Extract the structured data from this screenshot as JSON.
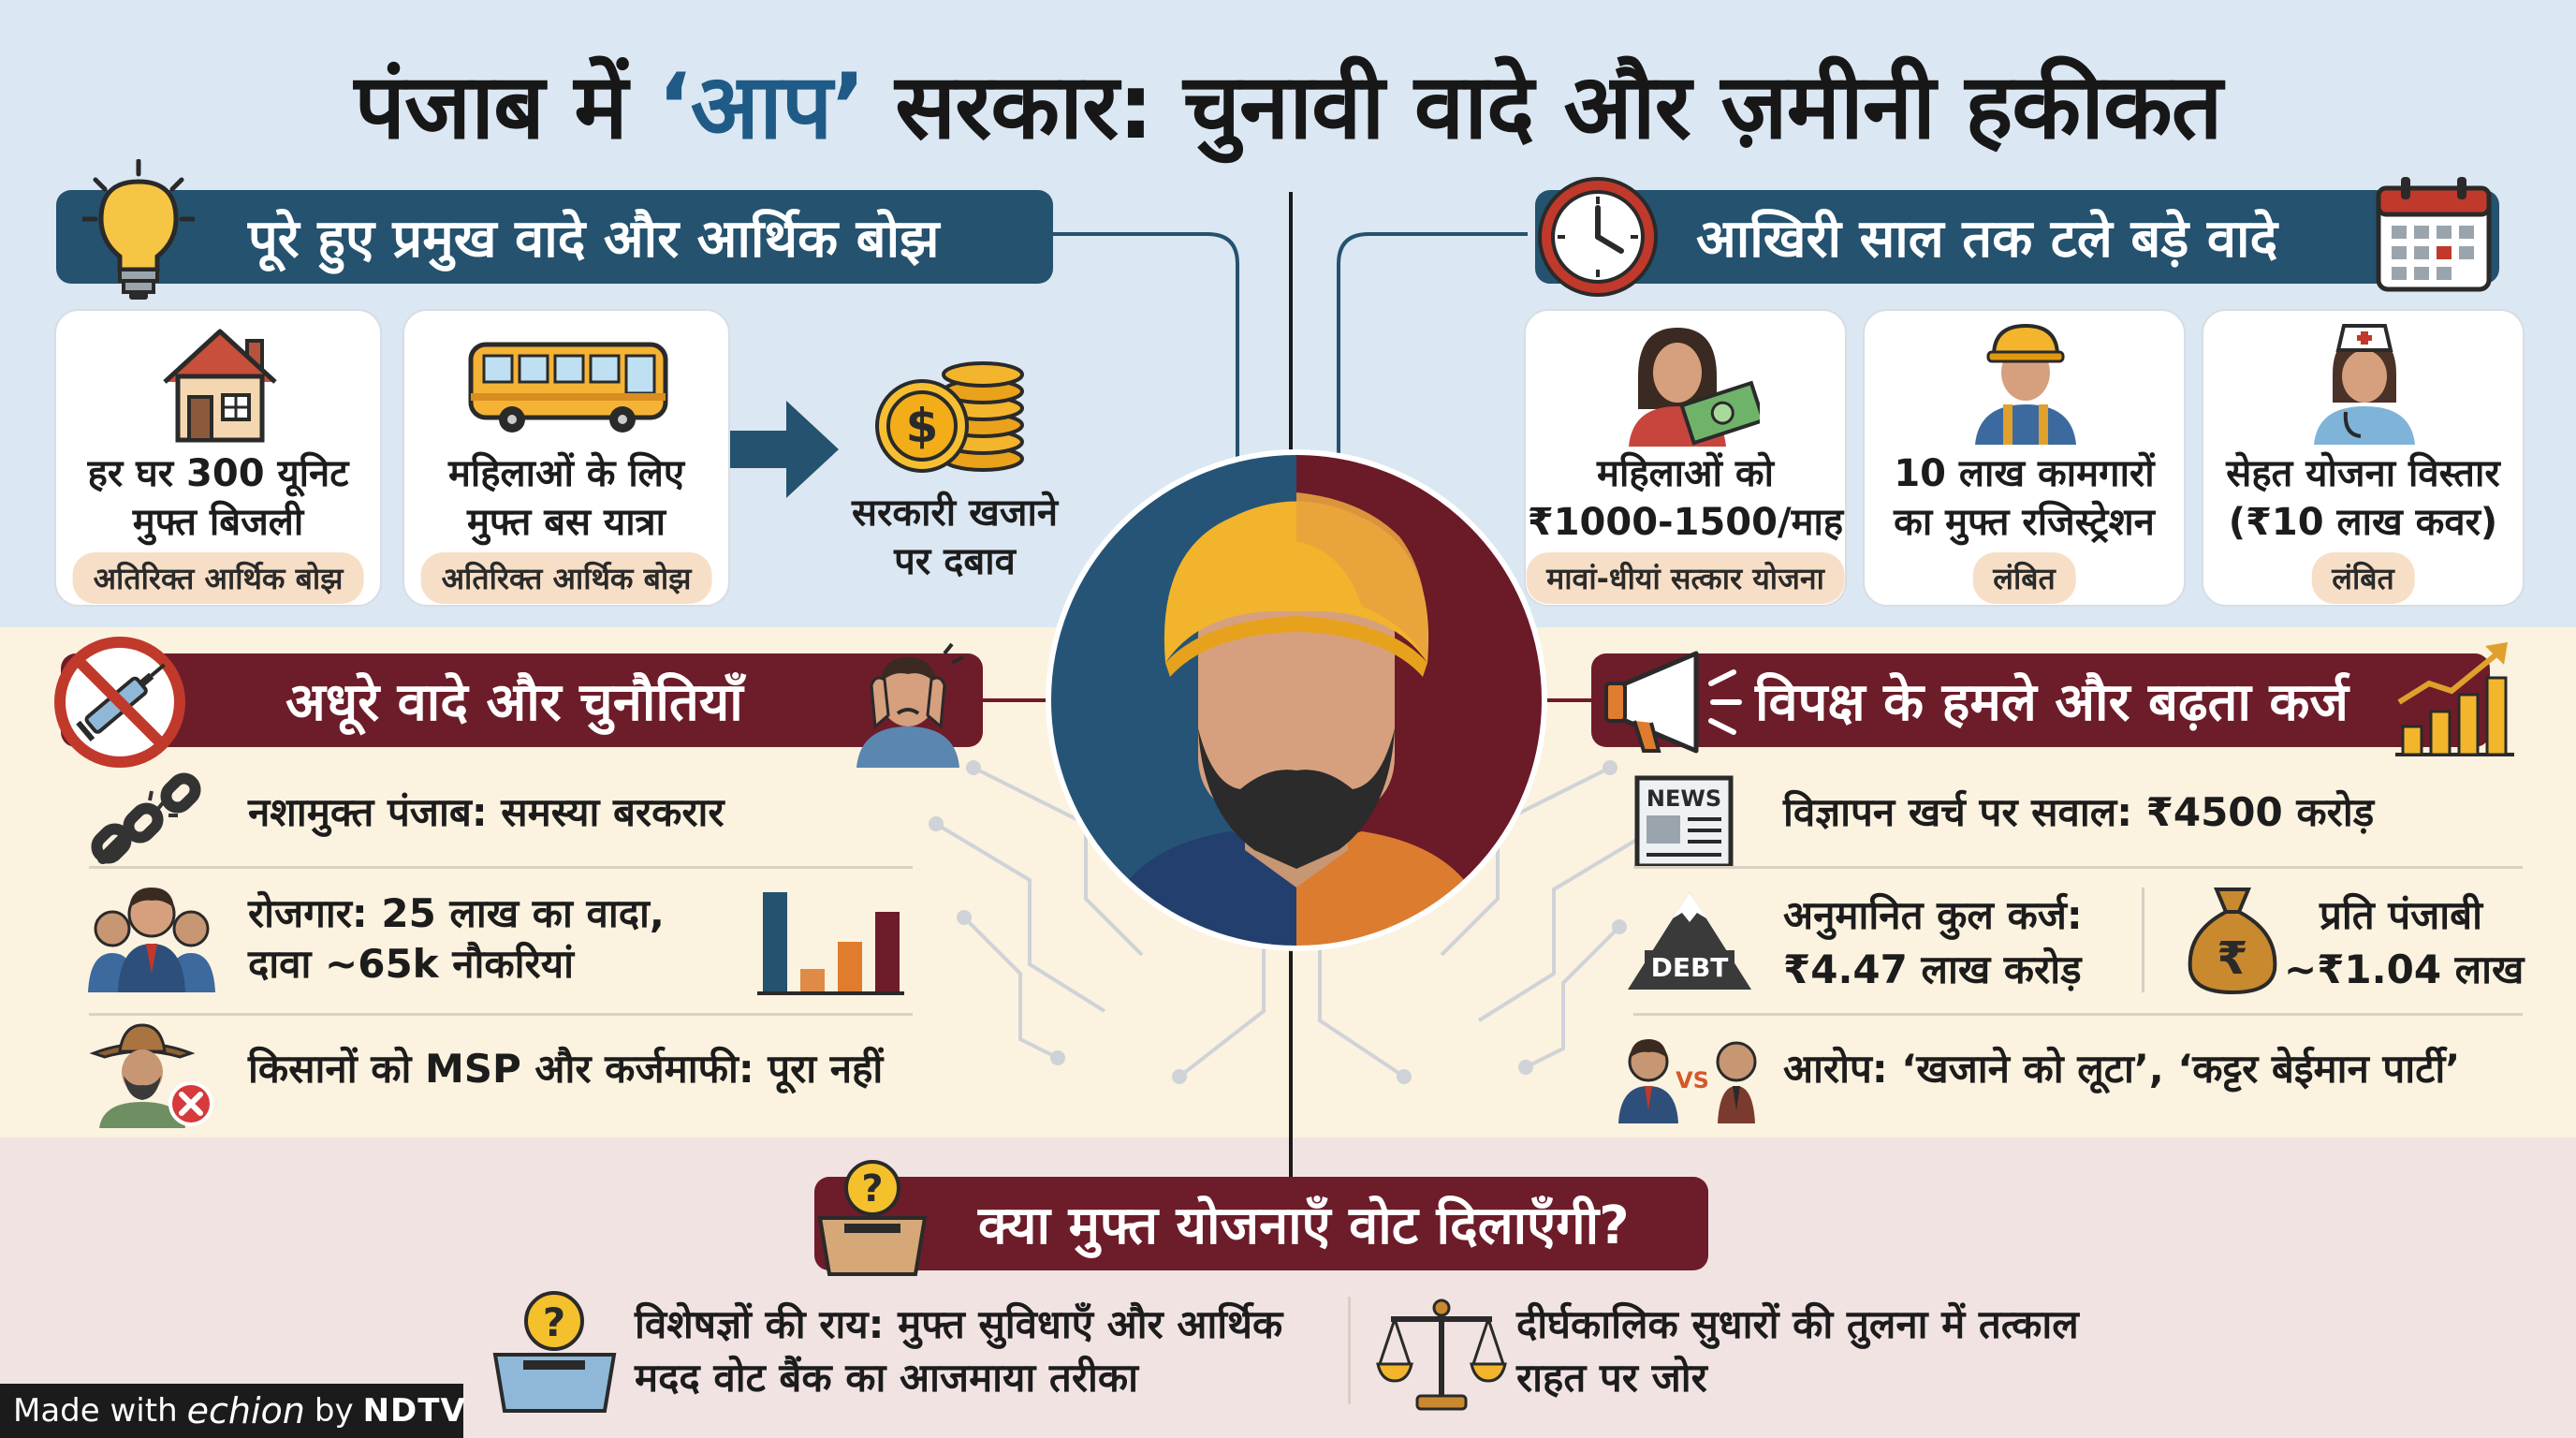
{
  "title": {
    "before": "पंजाब में ",
    "accent": "‘आप’",
    "after": " सरकार: चुनावी वादे और ज़मीनी हकीकत"
  },
  "colors": {
    "blue": "#24526f",
    "maroon": "#6d1c2a",
    "accent_blue": "#1f5b86",
    "pill": "#f7dfc7"
  },
  "fulfilled": {
    "heading": "पूरे हुए प्रमुख वादे और आर्थिक बोझ",
    "icon": "lightbulb-icon",
    "cards": [
      {
        "label_line1": "हर घर 300 यूनिट",
        "label_line2": "मुफ्त बिजली",
        "tag": "अतिरिक्त आर्थिक बोझ",
        "icon": "house-icon"
      },
      {
        "label_line1": "महिलाओं के लिए",
        "label_line2": "मुफ्त बस यात्रा",
        "tag": "अतिरिक्त आर्थिक बोझ",
        "icon": "bus-icon"
      }
    ],
    "result_line1": "सरकारी खजाने",
    "result_line2": "पर दबाव",
    "result_icon": "coins-icon"
  },
  "delayed": {
    "heading": "आखिरी साल तक टले बड़े वादे",
    "icon": "clock-icon",
    "icon2": "calendar-icon",
    "cards": [
      {
        "label_line1": "महिलाओं को",
        "label_line2": "₹1000-1500/माह",
        "tag": "मावां-धीयां सत्कार योजना",
        "icon": "woman-money-icon"
      },
      {
        "label_line1": "10 लाख कामगारों",
        "label_line2": "का मुफ्त रजिस्ट्रेशन",
        "tag": "लंबित",
        "icon": "worker-icon"
      },
      {
        "label_line1": "सेहत योजना विस्तार",
        "label_line2": "(₹10 लाख कवर)",
        "tag": "लंबित",
        "icon": "nurse-icon"
      }
    ]
  },
  "incomplete": {
    "heading": "अधूरे वादे और चुनौतियाँ",
    "icon": "no-drugs-icon",
    "icon2": "stressed-person-icon",
    "items": [
      {
        "line1": "नशामुक्त पंजाब: समस्या बरकरार",
        "icon": "broken-chain-icon"
      },
      {
        "line1": "रोजगार: 25 लाख का वादा,",
        "line2": "दावा ~65k नौकरियां",
        "icon": "people-icon"
      },
      {
        "line1": "किसानों को MSP और कर्जमाफी: पूरा नहीं",
        "icon": "farmer-cross-icon"
      }
    ],
    "jobs_bars": [
      0.9,
      0.2,
      0.45,
      0.72
    ]
  },
  "opposition": {
    "heading": "विपक्ष के हमले और बढ़ता कर्ज",
    "icon": "megaphone-icon",
    "icon2": "rising-chart-icon",
    "ad_spend": "विज्ञापन खर्च पर सवाल: ₹4500 करोड़",
    "ad_icon": "newspaper-icon",
    "news_label": "NEWS",
    "debt_line1": "अनुमानित कुल कर्ज:",
    "debt_line2": "₹4.47 लाख करोड़",
    "debt_label": "DEBT",
    "debt_icon": "debt-mountain-icon",
    "per_line1": "प्रति पंजाबी",
    "per_line2": "~₹1.04 लाख",
    "per_icon": "money-bag-icon",
    "rupee": "₹",
    "allegation": "आरोप: ‘खजाने को लूटा’, ‘कट्टर बेईमान पार्टी’",
    "allegation_icon": "politicians-versus-icon",
    "vs_label": "VS"
  },
  "freebies": {
    "heading": "क्या मुफ्त योजनाएँ वोट दिलाएँगी?",
    "icon": "ballot-box-icon",
    "question_mark": "?",
    "expert_line1": "विशेषज्ञों की राय: मुफ्त सुविधाएँ और आर्थिक",
    "expert_line2": "मदद वोट बैंक का आजमाया तरीका",
    "expert_icon": "ballot-box-icon",
    "reform_line1": "दीर्घकालिक सुधारों की तुलना में तत्काल",
    "reform_line2": "राहत पर जोर",
    "reform_icon": "scales-icon"
  },
  "footer": {
    "made_with": "Made with",
    "brand": "echion",
    "by": "by",
    "ndtv": "NDTV"
  }
}
